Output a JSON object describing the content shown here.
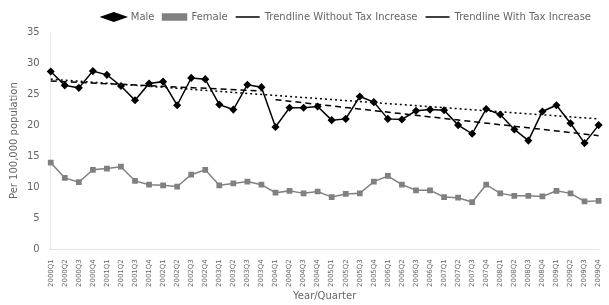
{
  "chart_data": {
    "type": "line",
    "xlabel": "Year/Quarter",
    "ylabel": "Per 100,000 population",
    "categories": [
      "2000Q1",
      "2000Q2",
      "2000Q3",
      "2000Q4",
      "2001Q1",
      "2001Q2",
      "2001Q3",
      "2001Q4",
      "2002Q1",
      "2002Q2",
      "2002Q3",
      "2002Q4",
      "2003Q1",
      "2003Q2",
      "2003Q3",
      "2003Q4",
      "2004Q1",
      "2004Q2",
      "2004Q3",
      "2004Q4",
      "2005Q1",
      "2005Q2",
      "2005Q3",
      "2005Q4",
      "2006Q1",
      "2006Q2",
      "2006Q3",
      "2006Q4",
      "2007Q1",
      "2007Q2",
      "2007Q3",
      "2007Q4",
      "2008Q1",
      "2008Q2",
      "2008Q3",
      "2008Q4",
      "2009Q1",
      "2009Q2",
      "2009Q3",
      "2009Q4"
    ],
    "series": [
      {
        "name": "Male",
        "color": "#000000",
        "marker": "diamond",
        "line_style": "solid",
        "values": [
          28.63,
          26.4,
          26.0,
          28.7,
          28.1,
          26.3,
          24.0,
          26.7,
          27.0,
          23.2,
          27.6,
          27.4,
          23.3,
          22.5,
          26.5,
          26.11,
          19.7,
          22.8,
          22.8,
          23.0,
          20.8,
          21.0,
          24.6,
          23.7,
          21.0,
          20.9,
          22.3,
          22.5,
          22.4,
          20.0,
          18.6,
          22.6,
          21.7,
          19.3,
          17.5,
          22.2,
          23.2,
          20.3,
          17.1,
          20.0
        ]
      },
      {
        "name": "Female",
        "color": "#808080",
        "marker": "square",
        "line_style": "solid",
        "values": [
          13.94,
          11.5,
          10.8,
          12.8,
          13.0,
          13.3,
          11.0,
          10.4,
          10.3,
          10.1,
          12.0,
          12.8,
          10.3,
          10.6,
          10.9,
          10.4,
          9.1,
          9.4,
          9.0,
          9.3,
          8.4,
          8.9,
          9.0,
          10.9,
          11.8,
          10.4,
          9.5,
          9.5,
          8.4,
          8.3,
          7.6,
          10.4,
          9.0,
          8.6,
          8.6,
          8.5,
          9.4,
          9.0,
          7.7,
          7.79
        ]
      },
      {
        "name": "Trendline Without Tax Increase",
        "color": "#000000",
        "marker": "none",
        "line_style": "dotted",
        "x": [
          "2000Q1",
          "2009Q4"
        ],
        "values": [
          27.4,
          21.0
        ]
      },
      {
        "name": "Trendline With Tax Increase",
        "color": "#000000",
        "marker": "none",
        "line_style": "dashed",
        "x": [
          "2000Q1",
          "2003Q4",
          null,
          "2004Q1",
          "2009Q4"
        ],
        "values": [
          27.1,
          25.5,
          null,
          24.1,
          18.3
        ]
      }
    ],
    "ylim": [
      0,
      35
    ],
    "yticks": [
      0,
      5,
      10,
      15,
      20,
      25,
      30,
      35
    ],
    "grid": false,
    "legend": "upper right"
  }
}
